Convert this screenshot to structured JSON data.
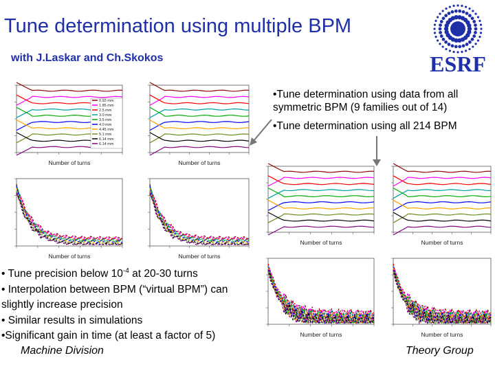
{
  "slide": {
    "title": "Tune determination using multiple BPM",
    "subtitle": "with J.Laskar and Ch.Skokos",
    "logo_text": "ESRF",
    "bullets_top": [
      "•Tune determination using data from all symmetric BPM (9 families out of 14)",
      "•Tune determination using all 214 BPM"
    ],
    "bullets_bottom": {
      "b1_pre": "• Tune precision below 10",
      "b1_exp": "-4",
      "b1_post": " at 20-30 turns",
      "b2": "• Interpolation between BPM (“virtual BPM”) can slightly increase precision",
      "b3": "• Similar results in simulations",
      "b4": "•Significant gain in time (at least a factor of 5)"
    },
    "footer_left": "Machine Division",
    "footer_right": "Theory Group"
  },
  "plots": {
    "xlabel": "Number of turns",
    "legend": [
      "0.93 mm",
      "1.85 mm",
      "2.5 mm",
      "3.0 mm",
      "3.5 mm",
      "4.0 mm",
      "4.45 mm",
      "5.1 mm",
      "6.14 mm",
      "6.14 mm"
    ]
  },
  "colors": {
    "title": "#1f2fa8",
    "series": [
      "#8b0000",
      "#ff00ff",
      "#ff0000",
      "#00a0a0",
      "#00aa00",
      "#0000ff",
      "#ffa500",
      "#6b8e23",
      "#000000",
      "#800080"
    ]
  }
}
